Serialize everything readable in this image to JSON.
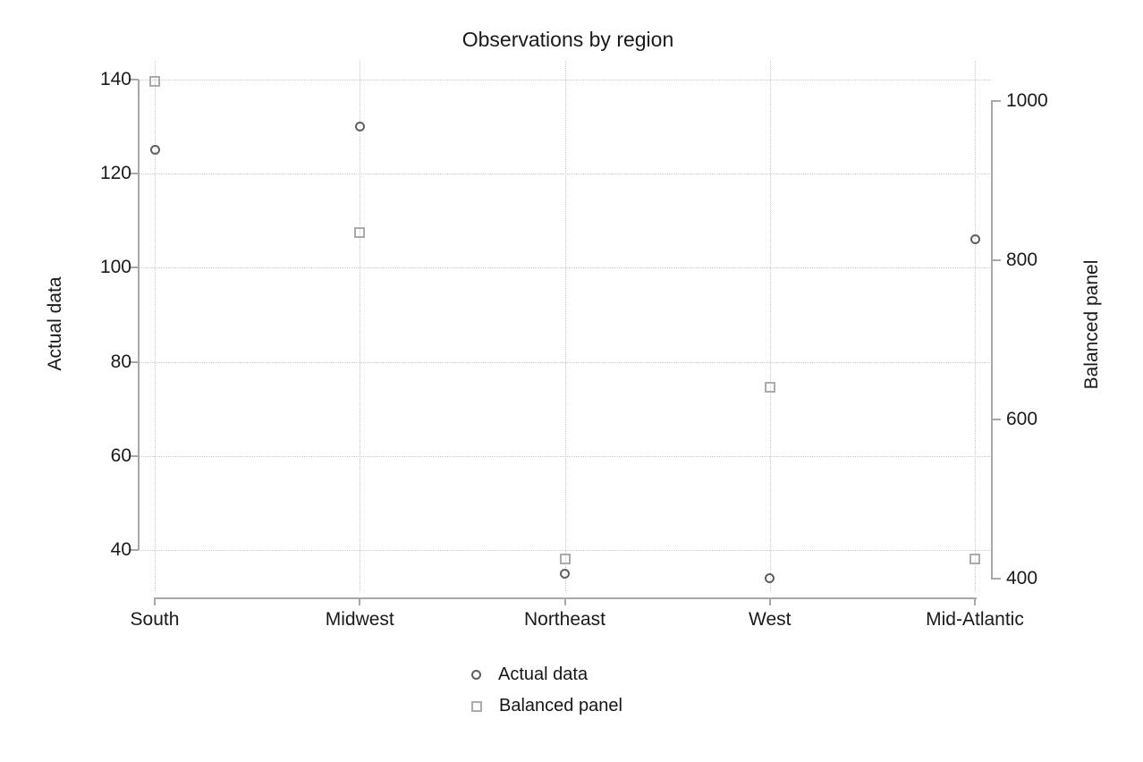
{
  "chart_data": {
    "type": "scatter",
    "title": "Observations by region",
    "categories": [
      "South",
      "Midwest",
      "Northeast",
      "West",
      "Mid-Atlantic"
    ],
    "series": [
      {
        "name": "Actual data",
        "marker": "circle",
        "axis": "left",
        "color": "#606060",
        "values": [
          125,
          130,
          35,
          34,
          106
        ]
      },
      {
        "name": "Balanced panel",
        "marker": "square",
        "axis": "right",
        "color": "#ababab",
        "values": [
          1025,
          835,
          425,
          640,
          425
        ]
      }
    ],
    "left_axis": {
      "label": "Actual data",
      "ticks": [
        40,
        60,
        80,
        100,
        120,
        140
      ],
      "lim": [
        40,
        140
      ]
    },
    "right_axis": {
      "label": "Balanced panel",
      "ticks": [
        400,
        600,
        800,
        1000
      ],
      "lim": [
        400,
        1000
      ]
    },
    "grid": "dotted",
    "legend_position": "bottom",
    "colors": {
      "axis_line": "#a8a8a8",
      "gridline": "#c9c9c9",
      "text": "#1a1a1a"
    }
  }
}
